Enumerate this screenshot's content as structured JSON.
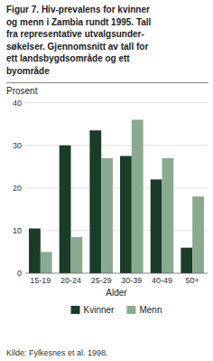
{
  "chart_data": {
    "type": "bar",
    "title": "Figur 7. Hiv-prevalens for kvinner\nog menn i Zambia rundt 1995. Tall\nfra representative utvalgsunder-\nsøkelser. Gjennomsnitt av tall for\nett landsbygdsområde og ett\nbyområde",
    "y_label": "Prosent",
    "x_label": "Alder",
    "source": "Kilde: Fylkesnes et al. 1998.",
    "categories": [
      "15-19",
      "20-24",
      "25-29",
      "30-39",
      "40-49",
      "50+"
    ],
    "series": [
      {
        "name": "Kvinner",
        "color": "#1a3d28",
        "values": [
          10.5,
          30.0,
          33.5,
          27.5,
          22.0,
          6.0
        ]
      },
      {
        "name": "Menn",
        "color": "#8aaa90",
        "values": [
          5.0,
          8.5,
          27.0,
          36.0,
          27.0,
          18.0
        ]
      }
    ],
    "ylim": [
      0,
      40
    ],
    "yticks": [
      0,
      10,
      20,
      30,
      40
    ],
    "grid": true,
    "legend": "bottom"
  }
}
